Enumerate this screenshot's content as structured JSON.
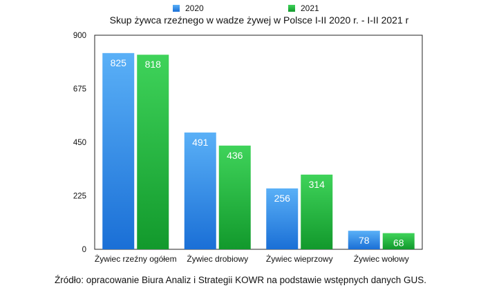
{
  "chart_data": {
    "type": "bar",
    "title": "Skup żywca rzeźnego w wadze żywej w Polsce I-II 2020 r. - I-II 2021 r",
    "categories": [
      "Żywiec rzeźny ogółem",
      "Żywiec drobiowy",
      "Żywiec wieprzowy",
      "Żywiec wołowy"
    ],
    "series": [
      {
        "name": "2020",
        "values": [
          825,
          491,
          256,
          78
        ],
        "color": "#2f8fe8"
      },
      {
        "name": "2021",
        "values": [
          818,
          436,
          314,
          68
        ],
        "color": "#1fb53e"
      }
    ],
    "y_ticks": [
      "0",
      "225",
      "450",
      "675",
      "900"
    ],
    "ylim": [
      0,
      900
    ],
    "grid": false,
    "legend_position": "top",
    "data_labels": true
  },
  "source_note": "Źródło: opracowanie Biura Analiz i Strategii KOWR na podstawie wstępnych danych GUS."
}
